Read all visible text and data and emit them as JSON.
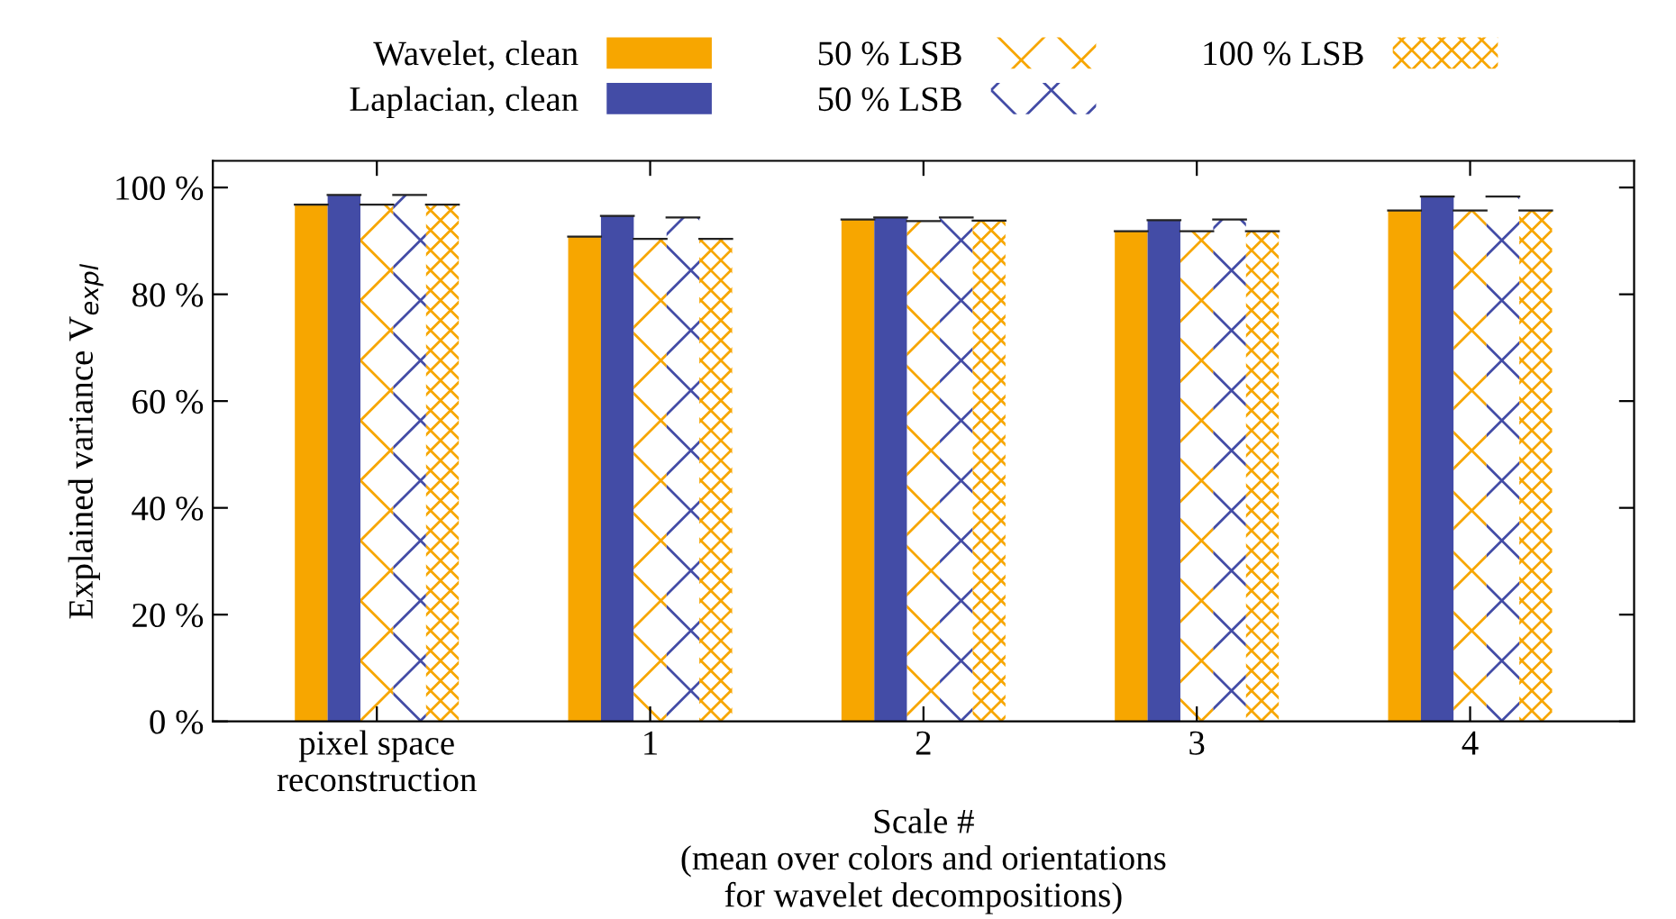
{
  "chart_data": {
    "type": "bar",
    "xlabel": "Scale #\n(mean over colors and orientations\nfor wavelet decompositions)",
    "ylabel": "Explained variance V$_{expl}$",
    "categories": [
      "pixel space\nreconstruction",
      "1",
      "2",
      "3",
      "4"
    ],
    "series": [
      {
        "name": "Wavelet, clean",
        "color": "#f7a600",
        "values": [
          96.8,
          90.8,
          94.0,
          91.8,
          95.7
        ]
      },
      {
        "name": "Laplacian, clean",
        "color": "#434ca6",
        "values": [
          98.6,
          94.7,
          94.4,
          93.9,
          98.3
        ]
      },
      {
        "name": "50 % LSB",
        "color": "#f7a600",
        "values": [
          96.8,
          90.4,
          93.7,
          91.8,
          95.7
        ]
      },
      {
        "name": "50 % LSB",
        "color": "#434ca6",
        "values": [
          98.6,
          94.4,
          94.4,
          94.0,
          98.3
        ]
      },
      {
        "name": "100 % LSB",
        "color": "#f7a600",
        "values": [
          96.8,
          90.4,
          93.8,
          91.8,
          95.7
        ]
      }
    ],
    "ylim": [
      0,
      105
    ],
    "yticks": [
      {
        "value": 0,
        "label": "0 %"
      },
      {
        "value": 20,
        "label": "20 %"
      },
      {
        "value": 40,
        "label": "40 %"
      },
      {
        "value": 60,
        "label": "60 %"
      },
      {
        "value": 80,
        "label": "80 %"
      },
      {
        "value": 100,
        "label": "100 %"
      }
    ],
    "legend": "top",
    "grid": false
  }
}
